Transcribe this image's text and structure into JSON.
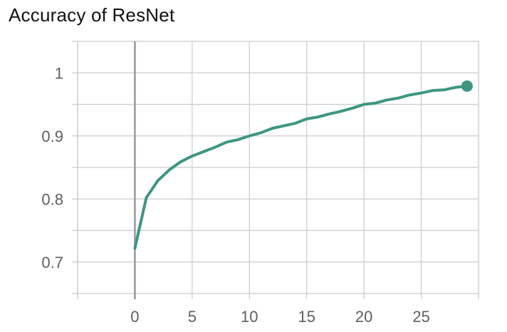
{
  "chart_data": {
    "type": "line",
    "title": "Accuracy of ResNet",
    "xlabel": "",
    "ylabel": "",
    "xlim": [
      -5,
      30
    ],
    "ylim": [
      0.65,
      1.05
    ],
    "x_ticks": [
      0,
      5,
      10,
      15,
      20,
      25
    ],
    "x_tick_labels": [
      "0",
      "5",
      "10",
      "15",
      "20",
      "25"
    ],
    "y_ticks": [
      0.7,
      0.8,
      0.9,
      1.0
    ],
    "y_tick_labels": [
      "0.7",
      "0.8",
      "0.9",
      "1"
    ],
    "grid": true,
    "legend": "none",
    "line_color": "#3e9682",
    "grid_color": "#cccccc",
    "zero_line_color": "#999999",
    "x": [
      0,
      1,
      2,
      3,
      4,
      5,
      6,
      7,
      8,
      9,
      10,
      11,
      12,
      13,
      14,
      15,
      16,
      17,
      18,
      19,
      20,
      21,
      22,
      23,
      24,
      25,
      26,
      27,
      28,
      29
    ],
    "series": [
      {
        "values": [
          0.722,
          0.802,
          0.829,
          0.846,
          0.859,
          0.868,
          0.875,
          0.882,
          0.89,
          0.894,
          0.9,
          0.905,
          0.912,
          0.916,
          0.92,
          0.927,
          0.93,
          0.935,
          0.939,
          0.944,
          0.95,
          0.952,
          0.957,
          0.96,
          0.965,
          0.968,
          0.972,
          0.973,
          0.977,
          0.979
        ]
      }
    ]
  }
}
